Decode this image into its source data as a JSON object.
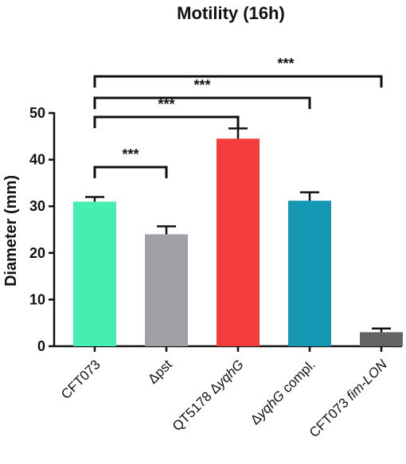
{
  "chart_data": {
    "type": "bar",
    "title": "Motility (16h)",
    "xlabel": "",
    "ylabel": "Diameter (mm)",
    "ylim": [
      0,
      50
    ],
    "yticks": [
      0,
      10,
      20,
      30,
      40,
      50
    ],
    "categories": [
      [
        {
          "t": "CFT073",
          "i": false
        }
      ],
      [
        {
          "t": "Δpst",
          "i": false
        }
      ],
      [
        {
          "t": "QT5178 Δ",
          "i": false
        },
        {
          "t": "yqhG",
          "i": true
        }
      ],
      [
        {
          "t": "Δ",
          "i": false
        },
        {
          "t": "yqhG",
          "i": true
        },
        {
          "t": " compl.",
          "i": false
        }
      ],
      [
        {
          "t": "CFT073 ",
          "i": false
        },
        {
          "t": "fim-LON",
          "i": true
        }
      ]
    ],
    "values": [
      31,
      24,
      44.5,
      31.2,
      3
    ],
    "errors": [
      1.0,
      1.7,
      2.2,
      1.8,
      0.8
    ],
    "colors": [
      "#45efb0",
      "#a0a0a6",
      "#f53c3c",
      "#1397b3",
      "#646464"
    ],
    "significance": [
      {
        "from": 0,
        "to": 1,
        "label": "***",
        "level": 0
      },
      {
        "from": 0,
        "to": 2,
        "label": "***",
        "level": 1
      },
      {
        "from": 0,
        "to": 3,
        "label": "***",
        "level": 2
      },
      {
        "from": 0,
        "to": 4,
        "label": "***",
        "level": 3
      }
    ],
    "grid": false,
    "legend": "none"
  }
}
